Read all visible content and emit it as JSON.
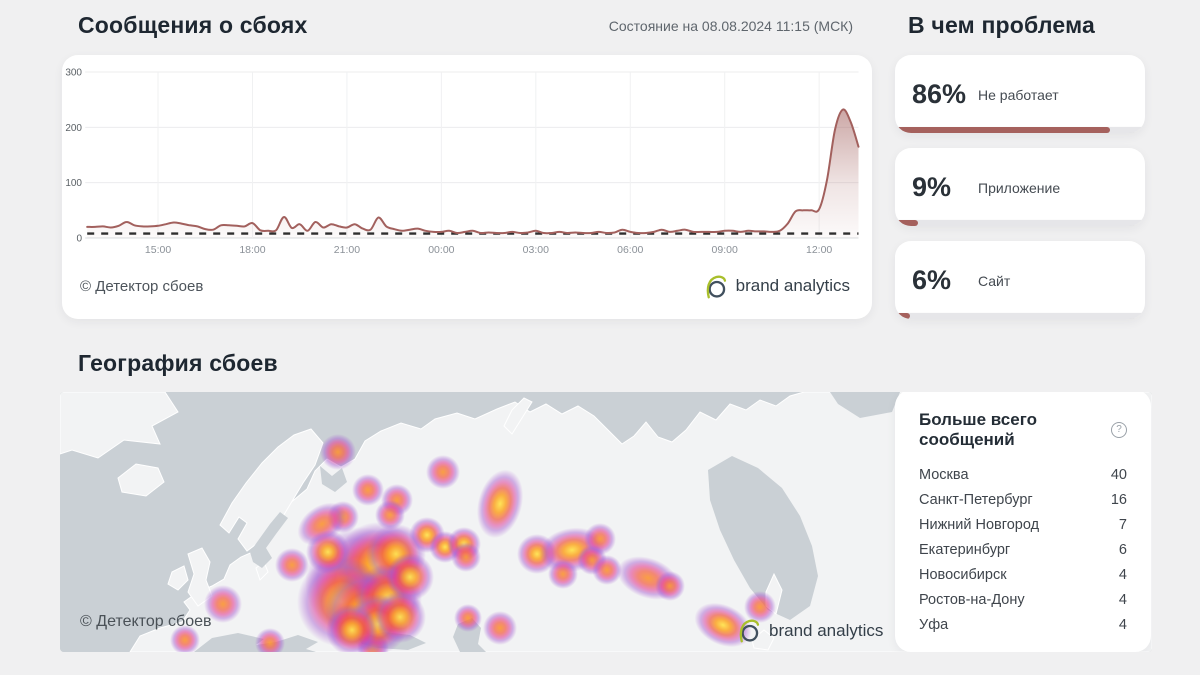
{
  "outages": {
    "title": "Сообщения о сбоях",
    "status": "Состояние на 08.08.2024 11:15 (МСК)",
    "attribution": "© Детектор сбоев",
    "logo_text": "brand analytics"
  },
  "chart_data": {
    "type": "area",
    "title": "Сообщения о сбоях",
    "x_start": "12:45",
    "interval_minutes": 15,
    "x_ticks": [
      "15:00",
      "18:00",
      "21:00",
      "00:00",
      "03:00",
      "06:00",
      "09:00",
      "12:00"
    ],
    "x_tick_indices": [
      9,
      21,
      33,
      45,
      57,
      69,
      81,
      93
    ],
    "y_ticks": [
      0,
      100,
      200,
      300
    ],
    "ylim": [
      0,
      300
    ],
    "baseline_dashed": 8,
    "line_color": "#a2605d",
    "grid": true,
    "values": [
      20,
      20,
      21,
      19,
      22,
      29,
      23,
      21,
      21,
      22,
      25,
      28,
      26,
      23,
      21,
      16,
      15,
      23,
      23,
      22,
      21,
      27,
      14,
      13,
      14,
      38,
      18,
      25,
      13,
      29,
      19,
      25,
      21,
      19,
      25,
      17,
      15,
      37,
      21,
      16,
      13,
      15,
      17,
      13,
      11,
      11,
      13,
      9,
      11,
      13,
      9,
      10,
      9,
      9,
      11,
      9,
      10,
      13,
      9,
      9,
      11,
      9,
      10,
      9,
      9,
      11,
      9,
      10,
      15,
      11,
      9,
      9,
      11,
      15,
      11,
      13,
      15,
      11,
      11,
      11,
      11,
      13,
      13,
      11,
      13,
      12,
      12,
      11,
      13,
      26,
      48,
      50,
      50,
      52,
      105,
      195,
      232,
      210,
      165
    ]
  },
  "problems": {
    "title": "В чем проблема",
    "bar_color": "#a5615d",
    "items": [
      {
        "percent": "86%",
        "value": 86,
        "label": "Не работает"
      },
      {
        "percent": "9%",
        "value": 9,
        "label": "Приложение"
      },
      {
        "percent": "6%",
        "value": 6,
        "label": "Сайт"
      }
    ]
  },
  "geography": {
    "title": "География сбоев",
    "attribution": "© Детектор сбоев",
    "logo_text": "brand analytics",
    "top_cities": {
      "title": "Больше всего сообщений",
      "help_icon": "?",
      "rows": [
        {
          "city": "Москва",
          "count": 40
        },
        {
          "city": "Санкт-Петербург",
          "count": 16
        },
        {
          "city": "Нижний Новгород",
          "count": 7
        },
        {
          "city": "Екатеринбург",
          "count": 6
        },
        {
          "city": "Новосибирск",
          "count": 4
        },
        {
          "city": "Ростов-на-Дону",
          "count": 4
        },
        {
          "city": "Уфа",
          "count": 4
        }
      ]
    },
    "heat_points": [
      {
        "x": 278,
        "y": 60,
        "r": 18,
        "h": "warm"
      },
      {
        "x": 383,
        "y": 80,
        "r": 17,
        "h": "warm"
      },
      {
        "x": 308,
        "y": 98,
        "r": 16,
        "h": "warm"
      },
      {
        "x": 337,
        "y": 108,
        "r": 16,
        "h": "warm"
      },
      {
        "x": 330,
        "y": 123,
        "r": 15,
        "h": "warm"
      },
      {
        "x": 283,
        "y": 125,
        "r": 16,
        "h": "warm"
      },
      {
        "x": 262,
        "y": 132,
        "r": 18,
        "h": "warm",
        "sx": 1.5,
        "rot": -35
      },
      {
        "x": 232,
        "y": 173,
        "r": 17,
        "h": "warm"
      },
      {
        "x": 163,
        "y": 212,
        "r": 19,
        "h": "warm"
      },
      {
        "x": 125,
        "y": 248,
        "r": 15,
        "h": "warm"
      },
      {
        "x": 210,
        "y": 251,
        "r": 15,
        "h": "warm"
      },
      {
        "x": 313,
        "y": 256,
        "r": 16,
        "h": "warm"
      },
      {
        "x": 440,
        "y": 236,
        "r": 17,
        "h": "warm"
      },
      {
        "x": 408,
        "y": 226,
        "r": 14,
        "h": "warm"
      },
      {
        "x": 588,
        "y": 186,
        "r": 20,
        "h": "warm",
        "sx": 1.6,
        "rot": 20
      },
      {
        "x": 610,
        "y": 194,
        "r": 15,
        "h": "warm"
      },
      {
        "x": 700,
        "y": 215,
        "r": 16,
        "h": "warm"
      },
      {
        "x": 663,
        "y": 233,
        "r": 20,
        "h": "hot",
        "sx": 1.5,
        "rot": 25
      },
      {
        "x": 440,
        "y": 112,
        "r": 22,
        "h": "hot",
        "sy": 1.6,
        "rot": 15
      },
      {
        "x": 367,
        "y": 143,
        "r": 18,
        "h": "hot"
      },
      {
        "x": 385,
        "y": 155,
        "r": 16,
        "h": "hot"
      },
      {
        "x": 404,
        "y": 152,
        "r": 17,
        "h": "hot"
      },
      {
        "x": 406,
        "y": 165,
        "r": 15,
        "h": "warm"
      },
      {
        "x": 477,
        "y": 162,
        "r": 20,
        "h": "hot"
      },
      {
        "x": 512,
        "y": 158,
        "r": 22,
        "h": "hot",
        "sx": 1.5,
        "rot": -10
      },
      {
        "x": 540,
        "y": 147,
        "r": 16,
        "h": "warm"
      },
      {
        "x": 532,
        "y": 168,
        "r": 15,
        "h": "warm"
      },
      {
        "x": 503,
        "y": 182,
        "r": 15,
        "h": "warm"
      },
      {
        "x": 547,
        "y": 178,
        "r": 15,
        "h": "warm"
      },
      {
        "x": 300,
        "y": 190,
        "r": 55,
        "h": "hot"
      },
      {
        "x": 318,
        "y": 172,
        "r": 42,
        "h": "hot"
      },
      {
        "x": 336,
        "y": 162,
        "r": 30,
        "h": "hot"
      },
      {
        "x": 282,
        "y": 210,
        "r": 45,
        "h": "hot"
      },
      {
        "x": 305,
        "y": 220,
        "r": 40,
        "h": "hot"
      },
      {
        "x": 328,
        "y": 206,
        "r": 34,
        "h": "hot"
      },
      {
        "x": 318,
        "y": 232,
        "r": 30,
        "h": "hot"
      },
      {
        "x": 292,
        "y": 238,
        "r": 26,
        "h": "hot"
      },
      {
        "x": 268,
        "y": 160,
        "r": 22,
        "h": "hot"
      },
      {
        "x": 350,
        "y": 185,
        "r": 24,
        "h": "hot"
      },
      {
        "x": 340,
        "y": 225,
        "r": 26,
        "h": "hot"
      }
    ]
  }
}
